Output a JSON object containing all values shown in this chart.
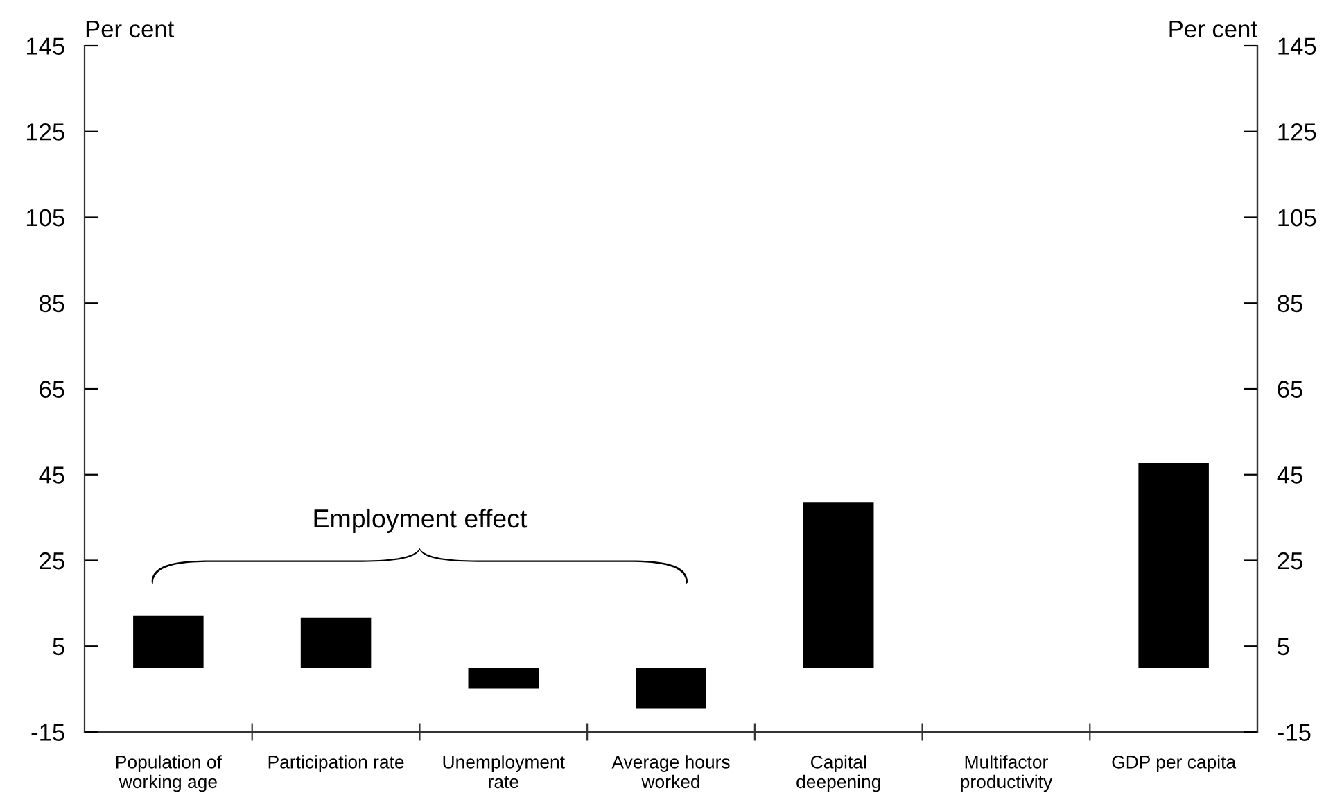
{
  "chart_data": {
    "type": "bar",
    "ylabel": "Per cent",
    "y2label": "Per cent",
    "categories": [
      "Population of\nworking age",
      "Participation rate",
      "Unemployment\nrate",
      "Average hours\nworked",
      "Capital\ndeepening",
      "Multifactor\nproductivity",
      "GDP per capita"
    ],
    "values": [
      12.2,
      11.7,
      -4.9,
      -9.6,
      38.6,
      0,
      47.7
    ],
    "color": "#000000",
    "ylim": [
      -15,
      145
    ],
    "yticks": [
      -15,
      5,
      25,
      45,
      65,
      85,
      105,
      125,
      145
    ],
    "y2lim": [
      -15,
      145
    ],
    "y2ticks": [
      -15,
      5,
      25,
      45,
      65,
      85,
      105,
      125,
      145
    ],
    "annotations": [
      "Employment effect"
    ],
    "grid": false
  }
}
